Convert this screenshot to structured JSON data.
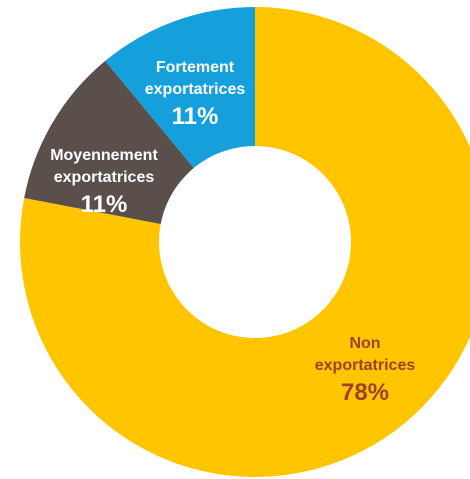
{
  "chart_data": {
    "type": "pie",
    "donut": true,
    "title": "",
    "series": [
      {
        "values": [
          78,
          11,
          11
        ],
        "labels": [
          [
            "Non",
            "exportatrices"
          ],
          [
            "Moyennement",
            "exportatrices"
          ],
          [
            "Fortement",
            "exportatrices"
          ]
        ],
        "value_labels": [
          "78%",
          "11%",
          "11%"
        ],
        "colors": [
          "#FFC600",
          "#5B4F4C",
          "#159FDB"
        ],
        "label_colors": [
          "#A0402A",
          "#FFFFFF",
          "#FFFFFF"
        ]
      }
    ],
    "legend": "none"
  }
}
